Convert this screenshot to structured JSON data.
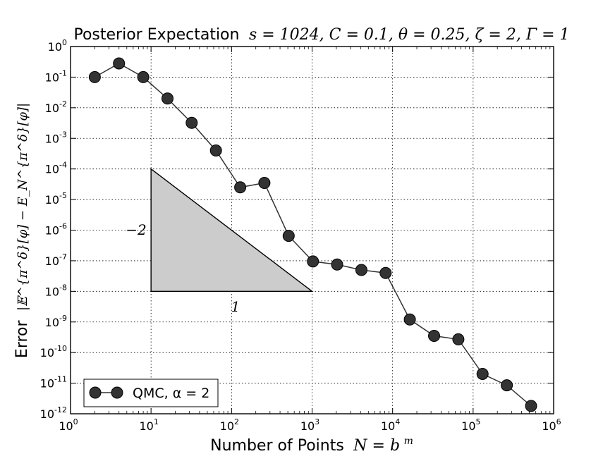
{
  "chart_data": {
    "type": "line",
    "title": {
      "text": "Posterior Expectation",
      "params": "s = 1024, C = 0.1, θ = 0.25, ζ = 2, Γ = 1"
    },
    "xlabel": {
      "text": "Number of Points",
      "math": "N = b",
      "math_sup": "m"
    },
    "ylabel": {
      "text": "Error",
      "math": "|𝔼^{π^δ}[φ] − E_N^{π^δ}[φ]|"
    },
    "x_scale": "log",
    "y_scale": "log",
    "xlim": [
      1,
      1000000
    ],
    "ylim": [
      1e-12,
      1
    ],
    "grid": true,
    "legend_position": "lower-left",
    "x_ticks": [
      {
        "value": 1,
        "base": "10",
        "exp": "0"
      },
      {
        "value": 10,
        "base": "10",
        "exp": "1"
      },
      {
        "value": 100,
        "base": "10",
        "exp": "2"
      },
      {
        "value": 1000,
        "base": "10",
        "exp": "3"
      },
      {
        "value": 10000,
        "base": "10",
        "exp": "4"
      },
      {
        "value": 100000,
        "base": "10",
        "exp": "5"
      },
      {
        "value": 1000000,
        "base": "10",
        "exp": "6"
      }
    ],
    "y_ticks": [
      {
        "value": 1,
        "base": "10",
        "exp": "0"
      },
      {
        "value": 0.1,
        "base": "10",
        "exp": "-1"
      },
      {
        "value": 0.01,
        "base": "10",
        "exp": "-2"
      },
      {
        "value": 0.001,
        "base": "10",
        "exp": "-3"
      },
      {
        "value": 0.0001,
        "base": "10",
        "exp": "-4"
      },
      {
        "value": 1e-05,
        "base": "10",
        "exp": "-5"
      },
      {
        "value": 1e-06,
        "base": "10",
        "exp": "-6"
      },
      {
        "value": 1e-07,
        "base": "10",
        "exp": "-7"
      },
      {
        "value": 1e-08,
        "base": "10",
        "exp": "-8"
      },
      {
        "value": 1e-09,
        "base": "10",
        "exp": "-9"
      },
      {
        "value": 1e-10,
        "base": "10",
        "exp": "-10"
      },
      {
        "value": 1e-11,
        "base": "10",
        "exp": "-11"
      },
      {
        "value": 1e-12,
        "base": "10",
        "exp": "-12"
      }
    ],
    "series": [
      {
        "name": "QMC, α = 2",
        "color": "#333333",
        "x": [
          2,
          4,
          8,
          16,
          32,
          64,
          128,
          256,
          512,
          1024,
          2048,
          4096,
          8192,
          16384,
          32768,
          65536,
          131072,
          262144,
          524288
        ],
        "y": [
          0.1,
          0.28,
          0.1,
          0.02,
          0.0032,
          0.0004,
          2.5e-05,
          3.5e-05,
          6.5e-07,
          9.5e-08,
          7.5e-08,
          5e-08,
          4e-08,
          1.2e-09,
          3.5e-10,
          2.7e-10,
          2e-11,
          8.5e-12,
          1.8e-12
        ]
      }
    ],
    "slope_triangle": {
      "color": "#cccccc",
      "vertices": [
        [
          10,
          0.0001
        ],
        [
          10,
          1e-08
        ],
        [
          1000,
          1e-08
        ]
      ],
      "vertical_label": "−2",
      "horizontal_label": "1"
    }
  }
}
